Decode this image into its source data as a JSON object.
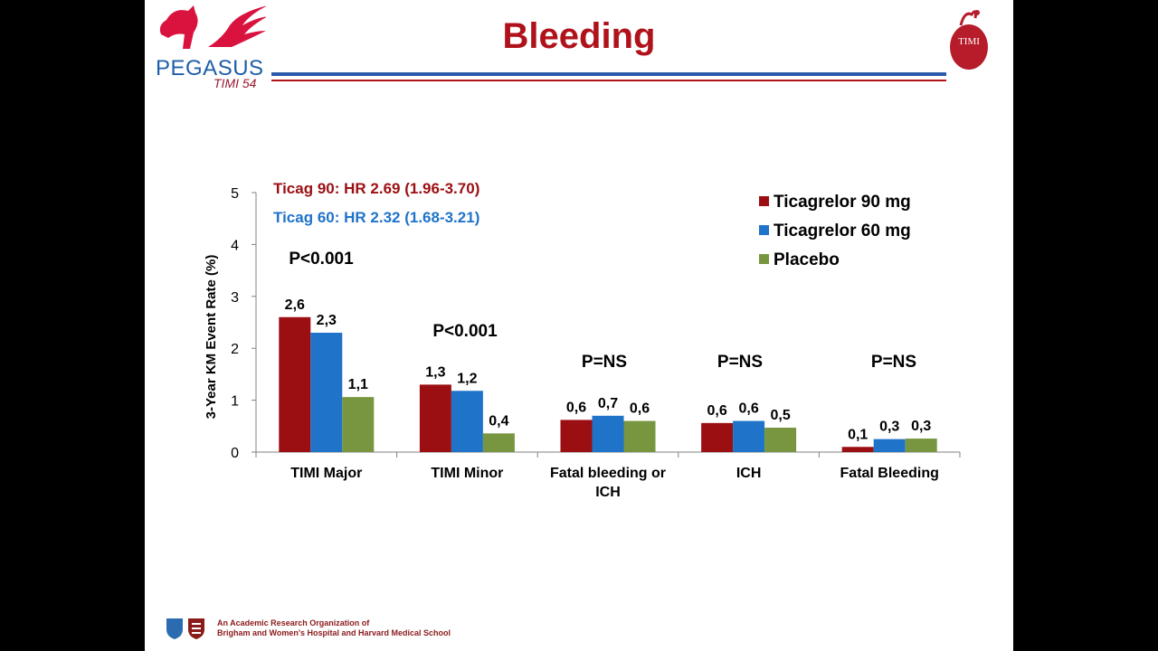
{
  "slide": {
    "title": "Bleeding",
    "logo_left_text": "PEGASUS",
    "logo_left_sub": "TIMI 54",
    "logo_right_text": "TIMI",
    "footer_line1": "An Academic Research Organization of",
    "footer_line2": "Brigham and Women's Hospital and Harvard Medical School"
  },
  "chart_data": {
    "type": "bar",
    "title": "",
    "xlabel": "",
    "ylabel": "3-Year KM Event Rate (%)",
    "ylim": [
      0,
      5
    ],
    "yticks": [
      "0",
      "1",
      "2",
      "3",
      "4",
      "5"
    ],
    "grid": false,
    "legend_position": "top-right",
    "categories": [
      "TIMI Major",
      "TIMI Minor",
      "Fatal bleeding or ICH",
      "ICH",
      "Fatal Bleeding"
    ],
    "category_labels": [
      [
        "TIMI Major"
      ],
      [
        "TIMI Minor"
      ],
      [
        "Fatal bleeding or",
        "ICH"
      ],
      [
        "ICH"
      ],
      [
        "Fatal Bleeding"
      ]
    ],
    "series": [
      {
        "name": "Ticagrelor 90 mg",
        "color": "#9b0f12",
        "values": [
          2.6,
          1.3,
          0.62,
          0.56,
          0.1
        ],
        "labels": [
          "2,6",
          "1,3",
          "0,6",
          "0,6",
          "0,1"
        ]
      },
      {
        "name": "Ticagrelor 60 mg",
        "color": "#1f73c9",
        "values": [
          2.3,
          1.18,
          0.7,
          0.6,
          0.25
        ],
        "labels": [
          "2,3",
          "1,2",
          "0,7",
          "0,6",
          "0,3"
        ]
      },
      {
        "name": "Placebo",
        "color": "#77963f",
        "values": [
          1.06,
          0.36,
          0.6,
          0.47,
          0.26
        ],
        "labels": [
          "1,1",
          "0,4",
          "0,6",
          "0,5",
          "0,3"
        ]
      }
    ],
    "p_values": [
      "P<0.001",
      "P<0.001",
      "P=NS",
      "P=NS",
      "P=NS"
    ],
    "annotations": [
      {
        "text": "Ticag 90: HR 2.69 (1.96-3.70)",
        "color": "#9b0f12"
      },
      {
        "text": "Ticag 60: HR 2.32 (1.68-3.21)",
        "color": "#1f73c9"
      }
    ]
  }
}
